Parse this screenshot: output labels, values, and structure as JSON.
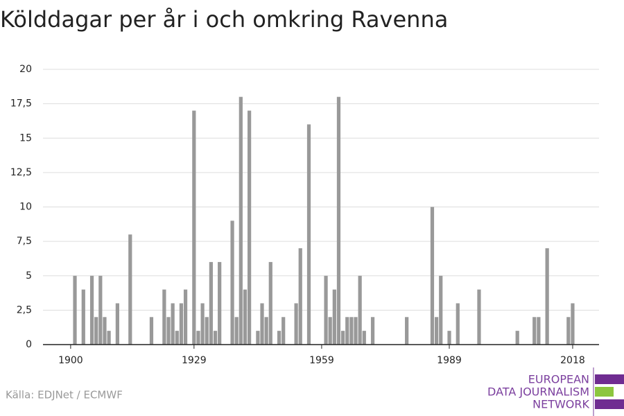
{
  "chart_data": {
    "type": "bar",
    "title": "Kölddagar per år i och omkring Ravenna",
    "source": "Källa: EDJNet / ECMWF",
    "logo": [
      "EUROPEAN",
      "DATA JOURNALISM",
      "NETWORK"
    ],
    "color": "#999999",
    "x": [
      1901,
      1903,
      1905,
      1906,
      1907,
      1908,
      1909,
      1911,
      1914,
      1919,
      1922,
      1923,
      1924,
      1925,
      1926,
      1927,
      1929,
      1930,
      1931,
      1932,
      1933,
      1934,
      1935,
      1938,
      1939,
      1940,
      1941,
      1942,
      1944,
      1945,
      1946,
      1947,
      1949,
      1950,
      1953,
      1954,
      1956,
      1960,
      1961,
      1962,
      1963,
      1964,
      1965,
      1966,
      1967,
      1968,
      1969,
      1971,
      1979,
      1985,
      1986,
      1987,
      1989,
      1991,
      1996,
      2005,
      2009,
      2010,
      2012,
      2017,
      2018
    ],
    "values": [
      5,
      4,
      5,
      2,
      5,
      2,
      1,
      3,
      8,
      2,
      4,
      2,
      3,
      1,
      3,
      4,
      17,
      1,
      3,
      2,
      6,
      1,
      6,
      9,
      2,
      18,
      4,
      17,
      1,
      3,
      2,
      6,
      1,
      2,
      3,
      7,
      16,
      5,
      2,
      4,
      18,
      1,
      2,
      2,
      2,
      5,
      1,
      2,
      2,
      10,
      2,
      5,
      1,
      3,
      4,
      1,
      2,
      2,
      7,
      2,
      3
    ],
    "xlim": [
      1893.5,
      2024.2
    ],
    "xticks": [
      1900,
      1929,
      1959,
      1989,
      2018
    ],
    "ylim": [
      0,
      20
    ],
    "yticks": [
      0,
      {
        "value": 2.5,
        "label": "2,5"
      },
      5,
      {
        "value": 7.5,
        "label": "7,5"
      },
      10,
      {
        "value": 12.5,
        "label": "12,5"
      },
      15,
      {
        "value": 17.5,
        "label": "17,5"
      },
      20
    ],
    "grid": true
  }
}
